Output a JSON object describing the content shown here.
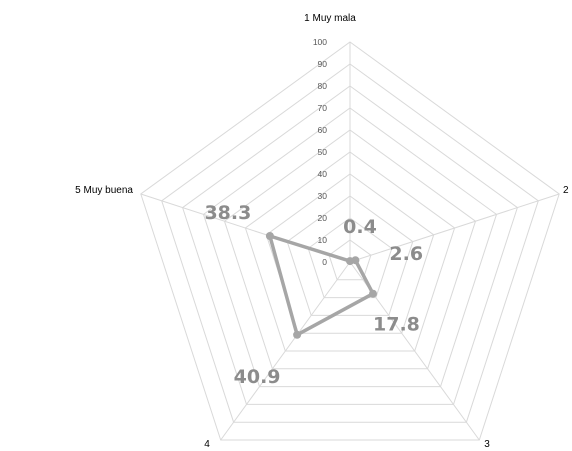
{
  "chart_data": {
    "type": "radar",
    "categories": [
      "1 Muy mala",
      "2",
      "3",
      "4",
      "5 Muy buena"
    ],
    "series": [
      {
        "values": [
          0.4,
          2.6,
          17.8,
          40.9,
          38.3
        ]
      }
    ],
    "data_labels": [
      "0.4",
      "2.6",
      "17.8",
      "40.9",
      "38.3"
    ],
    "r_ticks": [
      "0",
      "10",
      "20",
      "30",
      "40",
      "50",
      "60",
      "70",
      "80",
      "90",
      "100"
    ],
    "rlim": [
      0,
      100
    ],
    "grid": true,
    "legend": "none",
    "colors": {
      "series_line": "#a6a6a6",
      "grid": "#d9d9d9",
      "axis": "#d9d9d9",
      "data_label": "#8c8c8c"
    }
  }
}
